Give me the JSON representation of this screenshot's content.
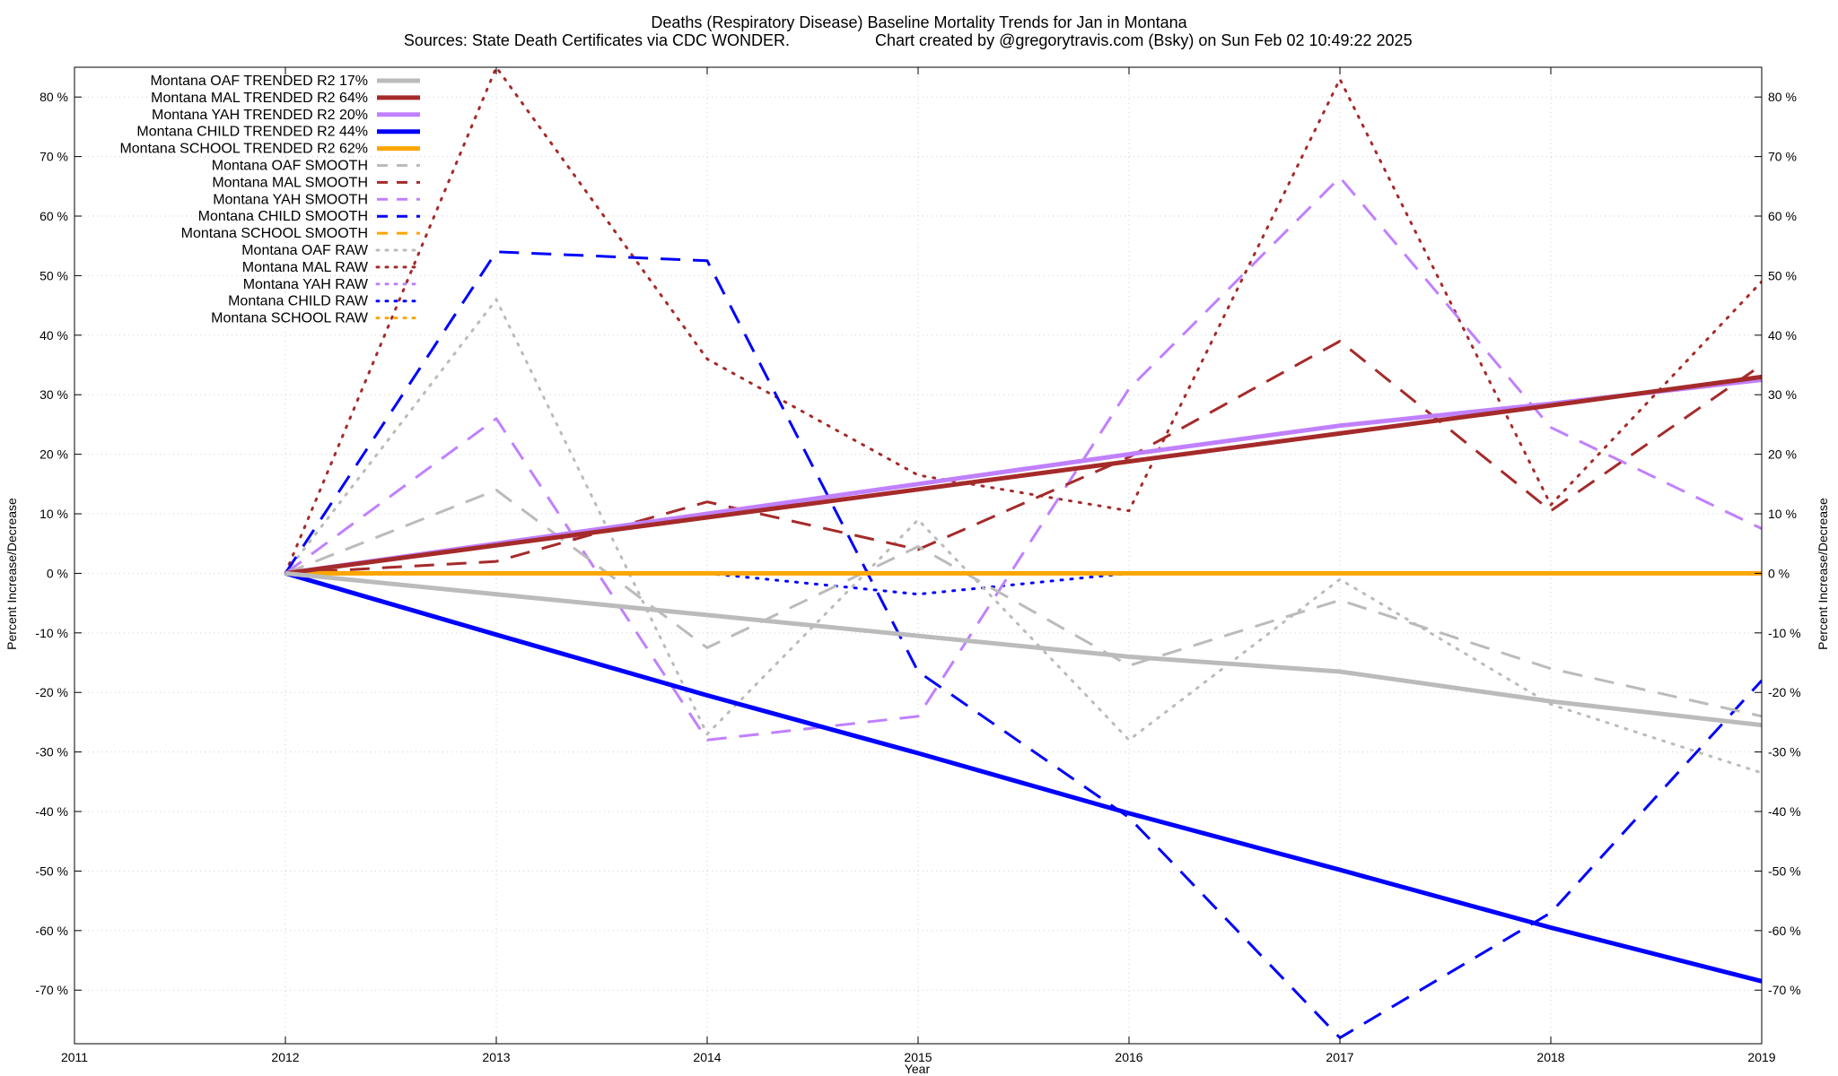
{
  "chart_data": {
    "type": "line",
    "title": "Deaths (Respiratory Disease)  Baseline Mortality Trends for Jan in Montana",
    "subtitle_left": "Sources: State Death Certificates via CDC WONDER.",
    "subtitle_right": "Chart created by @gregorytravis.com (Bsky) on Sun Feb 02 10:49:22 2025",
    "xlabel": "Year",
    "ylabel_left": "Percent Increase/Decrease",
    "ylabel_right": "Percent Increase/Decrease",
    "xlim": [
      2011,
      2019
    ],
    "ylim": [
      -79,
      85
    ],
    "x_ticks": [
      2011,
      2012,
      2013,
      2014,
      2015,
      2016,
      2017,
      2018,
      2019
    ],
    "x_tick_labels": [
      "2011",
      "2012",
      "2013",
      "2014",
      "2015",
      "2016",
      "2017",
      "2018",
      "2019"
    ],
    "y_ticks": [
      -70,
      -60,
      -50,
      -40,
      -30,
      -20,
      -10,
      0,
      10,
      20,
      30,
      40,
      50,
      60,
      70,
      80
    ],
    "y_tick_labels": [
      "-70 %",
      "-60 %",
      "-50 %",
      "-40 %",
      "-30 %",
      "-20 %",
      "-10 %",
      "0 %",
      "10 %",
      "20 %",
      "30 %",
      "40 %",
      "50 %",
      "60 %",
      "70 %",
      "80 %"
    ],
    "grid": true,
    "legend_position": "top-left",
    "x": [
      2012,
      2013,
      2014,
      2015,
      2016,
      2017,
      2018,
      2019
    ],
    "series": [
      {
        "name": "Montana OAF TRENDED R2  17%",
        "color": "#bbbbbb",
        "style": "solid",
        "width": 5,
        "values": [
          0,
          -3.5,
          -7,
          -10.5,
          -14,
          -16.5,
          -21.5,
          -25.5
        ]
      },
      {
        "name": "Montana MAL TRENDED R2  64%",
        "color": "#a52a2a",
        "style": "solid",
        "width": 5,
        "values": [
          0,
          4.7,
          9.4,
          14.1,
          18.8,
          23.5,
          28.2,
          33
        ]
      },
      {
        "name": "Montana YAH TRENDED R2  20%",
        "color": "#c080ff",
        "style": "solid",
        "width": 5,
        "values": [
          0,
          5,
          10,
          15,
          20,
          24.8,
          28.5,
          32.5
        ]
      },
      {
        "name": "Montana CHILD TRENDED R2  44%",
        "color": "#0000ff",
        "style": "solid",
        "width": 5,
        "values": [
          0,
          -10.3,
          -20.5,
          -30.2,
          -40.3,
          -49.8,
          -59.5,
          -68.5
        ]
      },
      {
        "name": "Montana SCHOOL TRENDED R2  62%",
        "color": "#ffa500",
        "style": "solid",
        "width": 5,
        "values": [
          0,
          0,
          0,
          0,
          0,
          0,
          0,
          0
        ]
      },
      {
        "name": "Montana OAF SMOOTH",
        "color": "#bbbbbb",
        "style": "dashed",
        "width": 3,
        "values": [
          0,
          14,
          -12.5,
          4.5,
          -15.5,
          -4.5,
          -16,
          -24
        ]
      },
      {
        "name": "Montana MAL SMOOTH",
        "color": "#a52a2a",
        "style": "dashed",
        "width": 3,
        "values": [
          0,
          2,
          12,
          4,
          19.5,
          39,
          10.5,
          35
        ]
      },
      {
        "name": "Montana YAH SMOOTH",
        "color": "#c080ff",
        "style": "dashed",
        "width": 3,
        "values": [
          0,
          26,
          -28,
          -24,
          31,
          66.5,
          24.5,
          7.5
        ]
      },
      {
        "name": "Montana CHILD SMOOTH",
        "color": "#0000ff",
        "style": "dashed",
        "width": 3,
        "values": [
          0,
          54,
          52.5,
          -16.5,
          -41,
          -78,
          -57,
          -18
        ]
      },
      {
        "name": "Montana SCHOOL SMOOTH",
        "color": "#ffa500",
        "style": "dashed",
        "width": 3,
        "values": [
          0,
          0,
          0,
          0,
          0,
          0,
          0,
          0
        ]
      },
      {
        "name": "Montana OAF RAW",
        "color": "#bbbbbb",
        "style": "dotted",
        "width": 3,
        "values": [
          0,
          46,
          -27,
          9,
          -28,
          -1,
          -22,
          -33.5
        ]
      },
      {
        "name": "Montana MAL RAW",
        "color": "#a52a2a",
        "style": "dotted",
        "width": 3,
        "values": [
          0,
          85,
          36,
          16.5,
          10.5,
          83,
          11.5,
          49
        ]
      },
      {
        "name": "Montana YAH RAW",
        "color": "#c080ff",
        "style": "dotted",
        "width": 3,
        "values": [
          null,
          null,
          null,
          null,
          null,
          null,
          null,
          null
        ]
      },
      {
        "name": "Montana CHILD RAW",
        "color": "#0000ff",
        "style": "dotted",
        "width": 3,
        "values": [
          null,
          null,
          0,
          -3.5,
          0,
          null,
          null,
          null
        ]
      },
      {
        "name": "Montana SCHOOL RAW",
        "color": "#ffa500",
        "style": "dotted",
        "width": 3,
        "values": [
          null,
          null,
          null,
          null,
          null,
          null,
          null,
          null
        ]
      }
    ]
  }
}
